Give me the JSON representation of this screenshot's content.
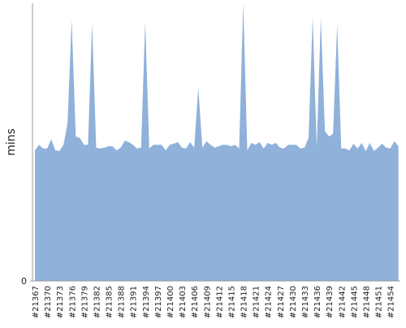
{
  "chart_data": {
    "type": "area",
    "y_label": "mins",
    "color": "#8fb1da",
    "categories": [
      "#21367",
      null,
      null,
      "#21370",
      null,
      null,
      "#21373",
      null,
      null,
      "#21376",
      null,
      null,
      "#21379",
      null,
      null,
      "#21382",
      null,
      null,
      "#21385",
      null,
      null,
      "#21388",
      null,
      null,
      "#21391",
      null,
      null,
      "#21394",
      null,
      null,
      "#21397",
      null,
      null,
      "#21400",
      null,
      null,
      "#21403",
      null,
      null,
      "#21406",
      null,
      null,
      "#21409",
      null,
      null,
      "#21412",
      null,
      null,
      "#21415",
      null,
      null,
      "#21418",
      null,
      null,
      "#21421",
      null,
      null,
      "#21424",
      null,
      null,
      "#21427",
      null,
      null,
      "#21430",
      null,
      null,
      "#21433",
      null,
      null,
      "#21436",
      null,
      null,
      "#21439",
      null,
      null,
      "#21442",
      null,
      null,
      "#21445",
      null,
      null,
      "#21448",
      null,
      null,
      "#21451",
      null,
      null,
      "#21454",
      null,
      null
    ],
    "values": [
      47,
      49,
      47.7,
      47.7,
      51,
      47,
      46.8,
      49,
      57,
      94,
      52,
      51.5,
      49,
      49,
      93,
      48,
      47.7,
      48,
      48.5,
      48.5,
      47,
      48,
      50.5,
      50,
      49,
      47.7,
      48,
      93.5,
      47.7,
      49,
      49,
      49,
      47,
      49,
      49.4,
      50,
      48,
      47.7,
      50,
      48,
      69.6,
      48,
      50.3,
      49,
      48,
      48.5,
      49,
      49,
      48.5,
      49,
      47.7,
      100,
      47,
      49.7,
      49,
      50,
      47.7,
      49.7,
      49,
      49.7,
      48,
      47.7,
      49,
      49,
      49,
      47.7,
      48,
      51.5,
      95,
      48,
      95,
      54,
      52,
      53,
      92.4,
      47.7,
      47.7,
      47,
      49.4,
      47.7,
      49.7,
      46.8,
      49.7,
      46.8,
      48,
      49.4,
      48,
      47.7,
      50.3,
      48.5
    ],
    "ylim": [
      0,
      100
    ],
    "yticks": [
      0
    ]
  }
}
